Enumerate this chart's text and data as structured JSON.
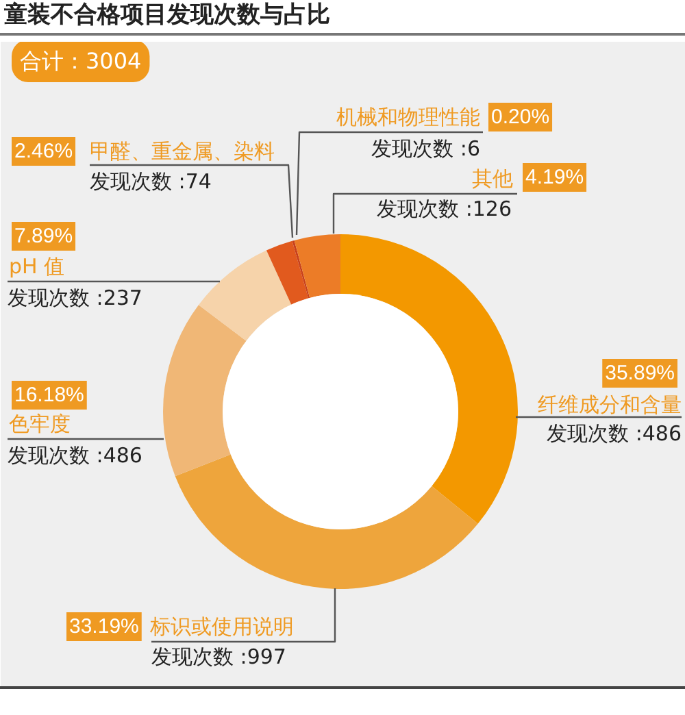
{
  "chart_data": {
    "type": "donut",
    "title": "童装不合格项目发现次数与占比",
    "subtitle": "合计：3004",
    "categories": [
      "纤维成分和含量",
      "标识或使用说明",
      "色牢度",
      "pH 值",
      "甲醛、重金属、染料",
      "机械和物理性能",
      "其他"
    ],
    "values": [
      35.89,
      33.19,
      16.18,
      7.89,
      2.46,
      0.2,
      4.19
    ],
    "colors": [
      "#f39800",
      "#eea53c",
      "#f0b776",
      "#f6d3aa",
      "#e15a1e",
      "#c8401a",
      "#ec7c27"
    ],
    "value_labels": [
      "35.89%",
      "33.19%",
      "16.18%",
      "7.89%",
      "2.46%",
      "0.20%",
      "4.19%"
    ],
    "annotations": [
      "发现次数 :486",
      "发现次数 :997",
      "发现次数 :486",
      "发现次数 :237",
      "发现次数 :74",
      "发现次数 :6",
      "发现次数 :126"
    ]
  }
}
